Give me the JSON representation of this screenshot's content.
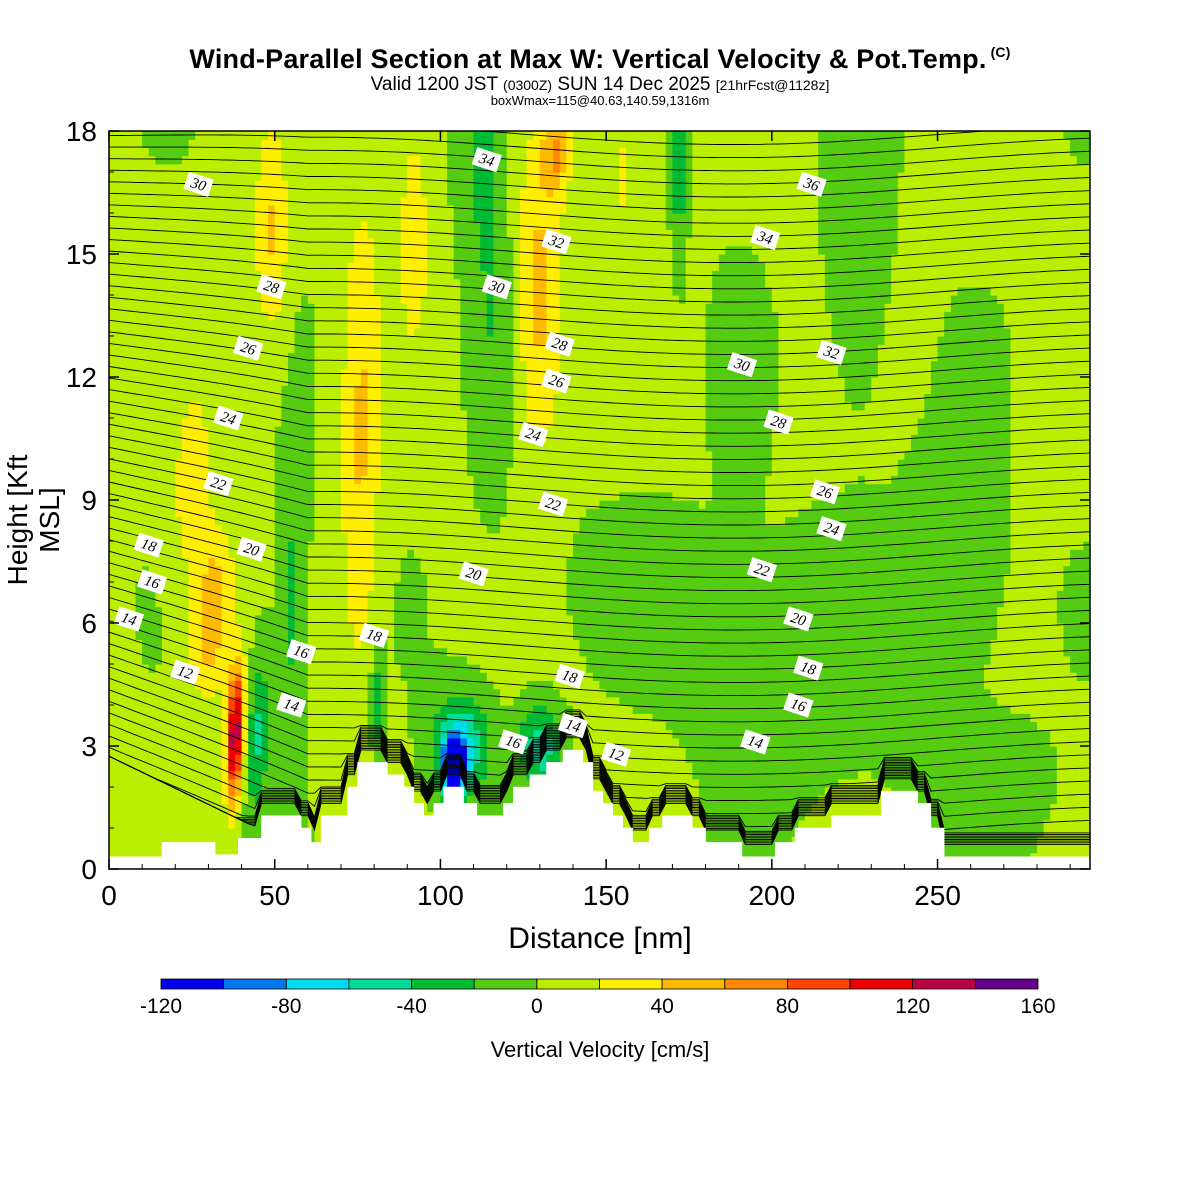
{
  "header": {
    "title": "Wind-Parallel Section at Max W: Vertical Velocity & Pot.Temp.",
    "copyright": "(C)",
    "valid_prefix": "Valid 1200 JST",
    "valid_utc": "(0300Z)",
    "valid_date": "SUN 14 Dec 2025",
    "forecast": "[21hrFcst@1128z]",
    "boxwmax": "boxWmax=115@40.63,140.59,1316m"
  },
  "chart_data": {
    "type": "contour",
    "title": "Wind-Parallel Section at Max W: Vertical Velocity & Pot.Temp.",
    "xlabel": "Distance [nm]",
    "ylabel": "Height [Kft MSL]",
    "xlim": [
      0,
      296
    ],
    "ylim": [
      0,
      18
    ],
    "x_ticks": [
      0,
      50,
      100,
      150,
      200,
      250
    ],
    "y_ticks": [
      0,
      3,
      6,
      9,
      12,
      15,
      18
    ],
    "colorbar": {
      "label": "Vertical Velocity [cm/s]",
      "tick_labels": [
        -120,
        -80,
        -40,
        0,
        40,
        80,
        120,
        160
      ],
      "levels": [
        -120,
        -100,
        -80,
        -60,
        -40,
        -20,
        0,
        20,
        40,
        60,
        80,
        100,
        120,
        140,
        160
      ],
      "colors": [
        "#0000ee",
        "#0077ee",
        "#00ddee",
        "#00dd99",
        "#00bb33",
        "#55cc11",
        "#bbee00",
        "#ffee00",
        "#ffbb00",
        "#ff8800",
        "#ff4400",
        "#ee0000",
        "#bb0044",
        "#660088"
      ]
    },
    "terrain_kft": [
      [
        0,
        0.3
      ],
      [
        16,
        0.3
      ],
      [
        16,
        0.65
      ],
      [
        32,
        0.65
      ],
      [
        32,
        0.35
      ],
      [
        39,
        0.35
      ],
      [
        39,
        0.75
      ],
      [
        46,
        0.75
      ],
      [
        46,
        1.3
      ],
      [
        58,
        1.3
      ],
      [
        58,
        1.0
      ],
      [
        61,
        1.0
      ],
      [
        61,
        0.65
      ],
      [
        64,
        0.65
      ],
      [
        64,
        1.3
      ],
      [
        72,
        1.3
      ],
      [
        72,
        2.0
      ],
      [
        75,
        2.0
      ],
      [
        75,
        2.6
      ],
      [
        84,
        2.6
      ],
      [
        84,
        2.3
      ],
      [
        89,
        2.3
      ],
      [
        89,
        2.0
      ],
      [
        92,
        2.0
      ],
      [
        92,
        1.6
      ],
      [
        95,
        1.6
      ],
      [
        95,
        1.3
      ],
      [
        98,
        1.3
      ],
      [
        98,
        1.6
      ],
      [
        101,
        1.6
      ],
      [
        101,
        2.0
      ],
      [
        107,
        2.0
      ],
      [
        107,
        1.6
      ],
      [
        111,
        1.6
      ],
      [
        111,
        1.3
      ],
      [
        119,
        1.3
      ],
      [
        119,
        1.6
      ],
      [
        122,
        1.6
      ],
      [
        122,
        2.0
      ],
      [
        127,
        2.0
      ],
      [
        127,
        2.3
      ],
      [
        132,
        2.3
      ],
      [
        132,
        2.6
      ],
      [
        137,
        2.6
      ],
      [
        137,
        2.9
      ],
      [
        143,
        2.9
      ],
      [
        143,
        2.6
      ],
      [
        146,
        2.6
      ],
      [
        146,
        1.9
      ],
      [
        149,
        1.9
      ],
      [
        149,
        1.6
      ],
      [
        152,
        1.6
      ],
      [
        152,
        1.3
      ],
      [
        155,
        1.3
      ],
      [
        155,
        1.0
      ],
      [
        158,
        1.0
      ],
      [
        158,
        0.65
      ],
      [
        163,
        0.65
      ],
      [
        163,
        1.0
      ],
      [
        167,
        1.0
      ],
      [
        167,
        1.3
      ],
      [
        176,
        1.3
      ],
      [
        176,
        1.0
      ],
      [
        180,
        1.0
      ],
      [
        180,
        0.65
      ],
      [
        191,
        0.65
      ],
      [
        191,
        0.3
      ],
      [
        201,
        0.3
      ],
      [
        201,
        0.65
      ],
      [
        207,
        0.65
      ],
      [
        207,
        1.0
      ],
      [
        218,
        1.0
      ],
      [
        218,
        1.3
      ],
      [
        233,
        1.3
      ],
      [
        233,
        1.9
      ],
      [
        244,
        1.9
      ],
      [
        244,
        1.6
      ],
      [
        248,
        1.6
      ],
      [
        248,
        1.0
      ],
      [
        252,
        1.0
      ],
      [
        252,
        0.3
      ],
      [
        296,
        0.3
      ]
    ],
    "velocity_features_cms": [
      {
        "x": 38,
        "y": 3.3,
        "w": 140,
        "sx": 2.5,
        "sy": 1.6,
        "slope": 0.4
      },
      {
        "x": 31,
        "y": 6.2,
        "w": 55,
        "sx": 6,
        "sy": 2.0,
        "slope": 0.8
      },
      {
        "x": 25,
        "y": 9.5,
        "w": 30,
        "sx": 6,
        "sy": 2.5,
        "slope": 0.5
      },
      {
        "x": 45,
        "y": 3.3,
        "w": -45,
        "sx": 3,
        "sy": 2.0,
        "slope": 0.4
      },
      {
        "x": 55,
        "y": 6.5,
        "w": -28,
        "sx": 4,
        "sy": 4.0,
        "slope": 0.3
      },
      {
        "x": 81,
        "y": 4.0,
        "w": -40,
        "sx": 2.2,
        "sy": 1.2,
        "slope": 0
      },
      {
        "x": 104,
        "y": 2.5,
        "w": -125,
        "sx": 3.2,
        "sy": 0.65,
        "slope": 0
      },
      {
        "x": 106,
        "y": 3.0,
        "w": -70,
        "sx": 8,
        "sy": 1.2,
        "slope": 0
      },
      {
        "x": 130,
        "y": 3.0,
        "w": -55,
        "sx": 6,
        "sy": 1.0,
        "slope": -0.5
      },
      {
        "x": 76,
        "y": 10.5,
        "w": 40,
        "sx": 6,
        "sy": 6.0,
        "slope": 0.1
      },
      {
        "x": 49,
        "y": 15.5,
        "w": 40,
        "sx": 5,
        "sy": 2.6,
        "slope": 0
      },
      {
        "x": 92,
        "y": 15.5,
        "w": 30,
        "sx": 5,
        "sy": 3.0,
        "slope": 0
      },
      {
        "x": 130,
        "y": 14.0,
        "w": 45,
        "sx": 7,
        "sy": 4.0,
        "slope": 0
      },
      {
        "x": 135,
        "y": 17.5,
        "w": 50,
        "sx": 4,
        "sy": 1.0,
        "slope": 0
      },
      {
        "x": 155,
        "y": 17.0,
        "w": 25,
        "sx": 4,
        "sy": 1.5,
        "slope": 0
      },
      {
        "x": 112,
        "y": 17.5,
        "w": -25,
        "sx": 6,
        "sy": 2.5,
        "slope": 0
      },
      {
        "x": 116,
        "y": 13.5,
        "w": -20,
        "sx": 6,
        "sy": 4.0,
        "slope": 0
      },
      {
        "x": 162,
        "y": 7.0,
        "w": -12,
        "sx": 20,
        "sy": 1.5,
        "slope": 0
      },
      {
        "x": 226,
        "y": 16.0,
        "w": -18,
        "sx": 8,
        "sy": 4.0,
        "slope": 0
      },
      {
        "x": 190,
        "y": 11.5,
        "w": -14,
        "sx": 6,
        "sy": 2.5,
        "slope": 0
      },
      {
        "x": 255,
        "y": 7.5,
        "w": -12,
        "sx": 15,
        "sy": 3.0,
        "slope": 0
      },
      {
        "x": 262,
        "y": 2.0,
        "w": -12,
        "sx": 20,
        "sy": 1.5,
        "slope": 0
      },
      {
        "x": 172,
        "y": 17.0,
        "w": -35,
        "sx": 2,
        "sy": 2.0,
        "slope": 0
      },
      {
        "x": 205,
        "y": 5.0,
        "w": -10,
        "sx": 30,
        "sy": 3.0,
        "slope": 0
      }
    ],
    "theta_isentropes": {
      "label_values": [
        12,
        14,
        16,
        18,
        20,
        22,
        24,
        26,
        28,
        30,
        32,
        34,
        36
      ],
      "labels": [
        {
          "text": "30",
          "x": 27,
          "y": 16.7
        },
        {
          "text": "28",
          "x": 49,
          "y": 14.2
        },
        {
          "text": "26",
          "x": 42,
          "y": 12.7
        },
        {
          "text": "24",
          "x": 36,
          "y": 11.0
        },
        {
          "text": "22",
          "x": 33,
          "y": 9.4
        },
        {
          "text": "18",
          "x": 12,
          "y": 7.9
        },
        {
          "text": "16",
          "x": 13,
          "y": 7.0
        },
        {
          "text": "14",
          "x": 6,
          "y": 6.1
        },
        {
          "text": "12",
          "x": 23,
          "y": 4.8
        },
        {
          "text": "20",
          "x": 43,
          "y": 7.8
        },
        {
          "text": "16",
          "x": 58,
          "y": 5.3
        },
        {
          "text": "14",
          "x": 55,
          "y": 4.0
        },
        {
          "text": "18",
          "x": 80,
          "y": 5.7
        },
        {
          "text": "34",
          "x": 114,
          "y": 17.3
        },
        {
          "text": "30",
          "x": 117,
          "y": 14.2
        },
        {
          "text": "32",
          "x": 135,
          "y": 15.3
        },
        {
          "text": "28",
          "x": 136,
          "y": 12.8
        },
        {
          "text": "26",
          "x": 135,
          "y": 11.9
        },
        {
          "text": "24",
          "x": 128,
          "y": 10.6
        },
        {
          "text": "22",
          "x": 134,
          "y": 8.9
        },
        {
          "text": "20",
          "x": 110,
          "y": 7.2
        },
        {
          "text": "16",
          "x": 122,
          "y": 3.1
        },
        {
          "text": "18",
          "x": 139,
          "y": 4.7
        },
        {
          "text": "14",
          "x": 140,
          "y": 3.5
        },
        {
          "text": "12",
          "x": 153,
          "y": 2.8
        },
        {
          "text": "36",
          "x": 212,
          "y": 16.7
        },
        {
          "text": "34",
          "x": 198,
          "y": 15.4
        },
        {
          "text": "32",
          "x": 218,
          "y": 12.6
        },
        {
          "text": "30",
          "x": 191,
          "y": 12.3
        },
        {
          "text": "28",
          "x": 202,
          "y": 10.9
        },
        {
          "text": "26",
          "x": 216,
          "y": 9.2
        },
        {
          "text": "24",
          "x": 218,
          "y": 8.3
        },
        {
          "text": "22",
          "x": 197,
          "y": 7.3
        },
        {
          "text": "20",
          "x": 208,
          "y": 6.1
        },
        {
          "text": "18",
          "x": 211,
          "y": 4.9
        },
        {
          "text": "16",
          "x": 208,
          "y": 4.0
        },
        {
          "text": "14",
          "x": 195,
          "y": 3.1
        }
      ]
    }
  }
}
